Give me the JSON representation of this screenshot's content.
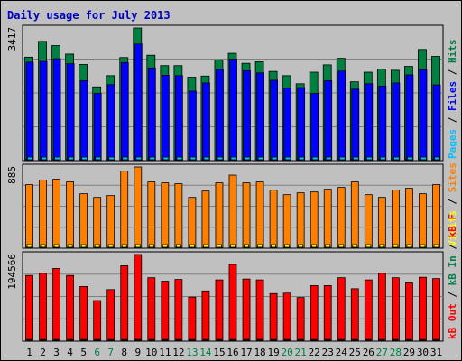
{
  "chart_data": {
    "type": "bar",
    "title": "Daily usage for July 2013",
    "categories": [
      "1",
      "2",
      "3",
      "4",
      "5",
      "6",
      "7",
      "8",
      "9",
      "10",
      "11",
      "12",
      "13",
      "14",
      "15",
      "16",
      "17",
      "18",
      "19",
      "20",
      "21",
      "22",
      "23",
      "24",
      "25",
      "26",
      "27",
      "28",
      "29",
      "30",
      "31"
    ],
    "weekend_days": [
      "6",
      "7",
      "13",
      "14",
      "20",
      "21",
      "27",
      "28"
    ],
    "colors": {
      "hits": "#008040",
      "files": "#0000ff",
      "pages": "#00c0ff",
      "visits": "#ffff00",
      "sites": "#ff8000",
      "kb_in": "#00804a",
      "kb_out": "#ff0000",
      "title": "#0000c0",
      "weekday_tick": "#000000",
      "weekend_tick": "#008040"
    },
    "panels": [
      {
        "id": "hits-files-pages",
        "ymax_label": "3417",
        "ylim": [
          0,
          3417
        ],
        "legend": [
          {
            "key": "pages",
            "label": "Pages",
            "color": "#00c0ff"
          },
          {
            "key": "files",
            "label": "Files",
            "color": "#0000ff"
          },
          {
            "key": "hits",
            "label": "Hits",
            "color": "#008040"
          }
        ],
        "series": [
          {
            "name": "Hits",
            "color": "#008040",
            "values": [
              2660,
              3070,
              2960,
              2740,
              2470,
              1890,
              2180,
              2650,
              3417,
              2710,
              2440,
              2440,
              2140,
              2170,
              2590,
              2760,
              2500,
              2540,
              2290,
              2180,
              1970,
              2270,
              2460,
              2630,
              2020,
              2270,
              2350,
              2320,
              2420,
              2860,
              2680
            ]
          },
          {
            "name": "Files",
            "color": "#0000ff",
            "values": [
              2530,
              2550,
              2620,
              2490,
              2050,
              1720,
              1950,
              2520,
              3000,
              2380,
              2190,
              2180,
              1780,
              1990,
              2340,
              2610,
              2310,
              2250,
              2060,
              1860,
              1870,
              1720,
              2050,
              2300,
              1830,
              1970,
              1910,
              1990,
              2200,
              2330,
              1940
            ]
          },
          {
            "name": "Pages",
            "color": "#00c0ff",
            "values": [
              70,
              70,
              70,
              70,
              70,
              70,
              70,
              70,
              70,
              70,
              70,
              70,
              70,
              70,
              70,
              70,
              70,
              70,
              70,
              70,
              70,
              70,
              70,
              70,
              70,
              70,
              70,
              70,
              70,
              70,
              70
            ]
          }
        ]
      },
      {
        "id": "sites-visits",
        "ymax_label": "885",
        "ylim": [
          0,
          885
        ],
        "legend": [
          {
            "key": "visits",
            "label": "Visits",
            "color": "#ffff00"
          },
          {
            "key": "sites",
            "label": "Sites",
            "color": "#ff8000"
          }
        ],
        "series": [
          {
            "name": "Sites",
            "color": "#ff8000",
            "values": [
              690,
              740,
              750,
              720,
              590,
              550,
              570,
              840,
              885,
              720,
              710,
              700,
              550,
              620,
              710,
              795,
              710,
              720,
              630,
              580,
              600,
              610,
              640,
              660,
              720,
              580,
              550,
              630,
              650,
              590,
              690
            ]
          },
          {
            "name": "Visits",
            "color": "#ffff00",
            "values": [
              30,
              30,
              30,
              30,
              30,
              30,
              30,
              30,
              30,
              30,
              30,
              30,
              30,
              30,
              30,
              30,
              30,
              30,
              30,
              30,
              30,
              30,
              30,
              30,
              30,
              30,
              30,
              30,
              30,
              30,
              30
            ]
          }
        ]
      },
      {
        "id": "kbytes",
        "ymax_label": "194566",
        "ylim": [
          0,
          194566
        ],
        "legend": [
          {
            "key": "kb_out",
            "label": "kB Out",
            "color": "#ff0000"
          },
          {
            "key": "kb_in",
            "label": "kB In",
            "color": "#00804a"
          },
          {
            "key": "kb_f",
            "label": "kB F",
            "color": "#ff0000"
          }
        ],
        "series": [
          {
            "name": "kB F",
            "color": "#ff0000",
            "values": [
              147000,
              152000,
              163000,
              147000,
              122000,
              90000,
              115000,
              169000,
              194566,
              142000,
              134000,
              138000,
              98000,
              112000,
              137000,
              172000,
              139000,
              137000,
              106000,
              107000,
              97000,
              124000,
              124000,
              142000,
              117000,
              137000,
              152000,
              142000,
              130000,
              143000,
              140000
            ]
          },
          {
            "name": "kB In",
            "color": "#00804a",
            "values": [
              0,
              0,
              0,
              0,
              0,
              0,
              0,
              0,
              0,
              0,
              0,
              0,
              0,
              0,
              0,
              0,
              0,
              0,
              0,
              0,
              0,
              0,
              0,
              0,
              0,
              0,
              0,
              0,
              0,
              0,
              0
            ]
          }
        ]
      }
    ]
  }
}
